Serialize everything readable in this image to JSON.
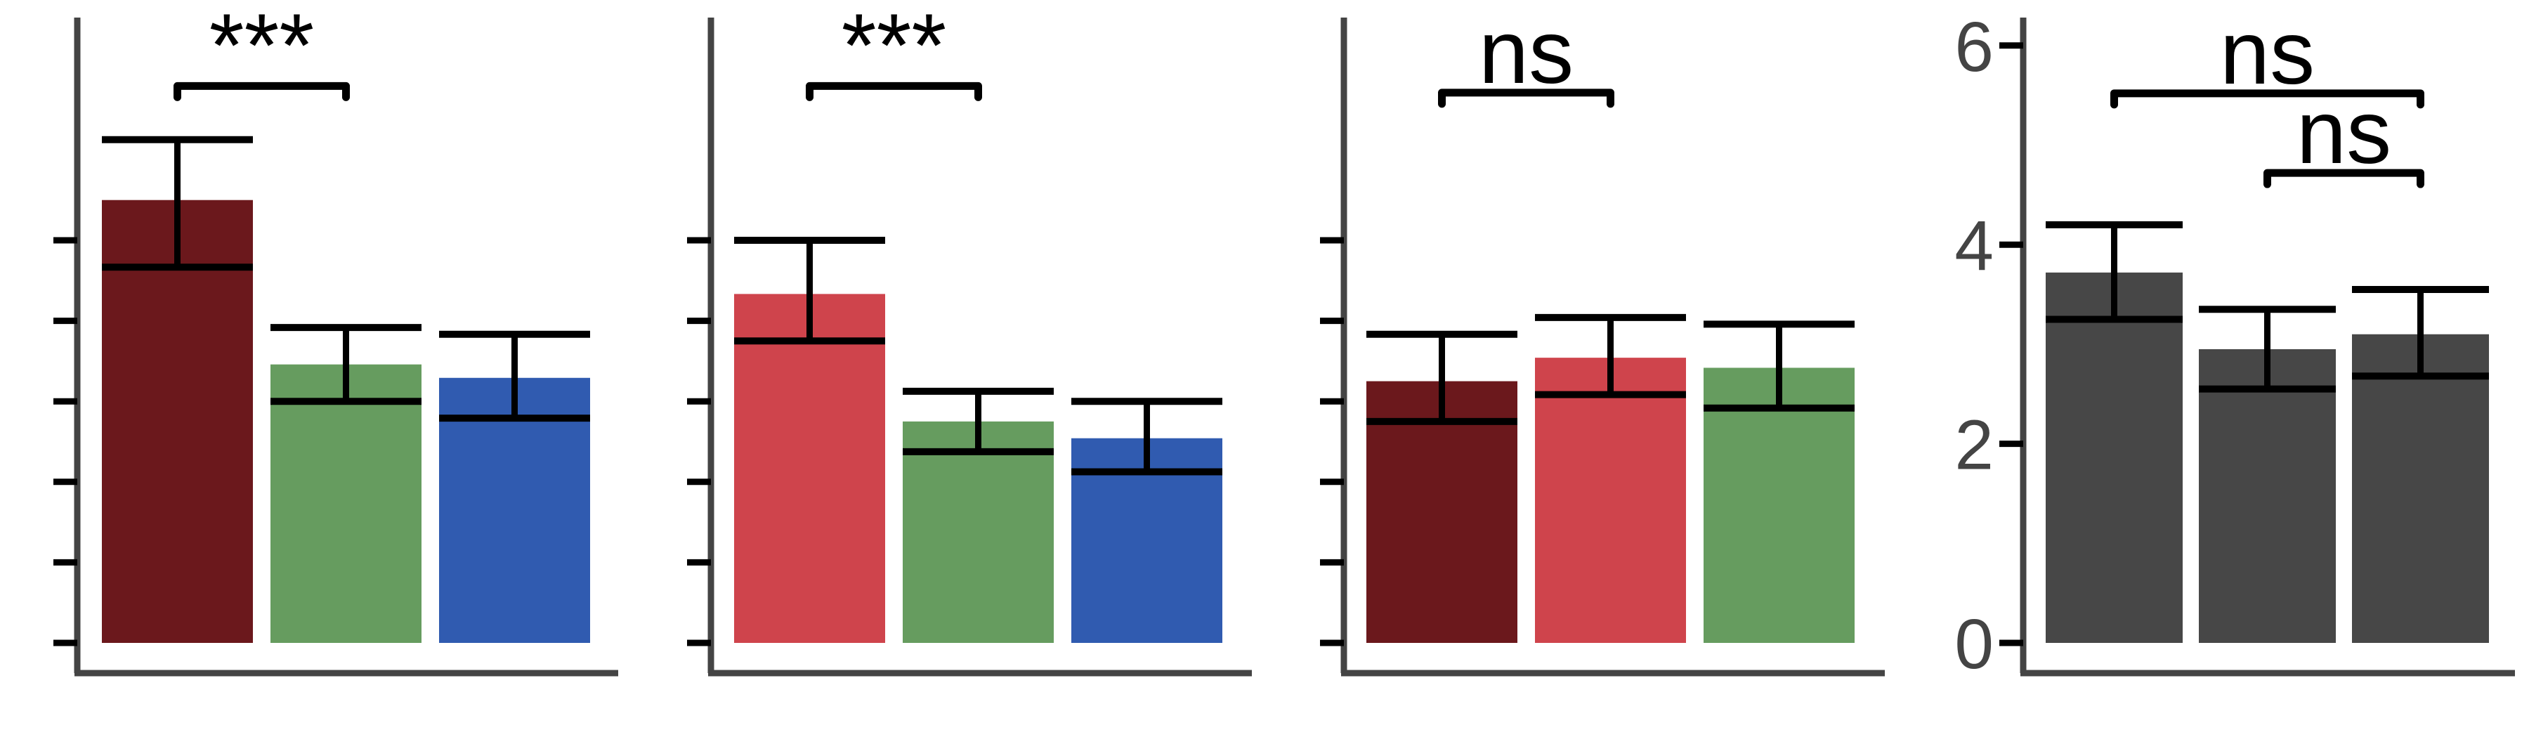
{
  "colors": {
    "axis": "#444444",
    "ink": "#000000",
    "dark_red": "#6b181c",
    "red": "#cf444c",
    "green": "#669c5f",
    "blue": "#305bb0",
    "gray": "#474747"
  },
  "chart_data": [
    {
      "type": "bar",
      "ylim": [
        0,
        6
      ],
      "yticks": [
        0,
        1.2,
        2.4,
        3.6,
        4.8,
        6.0
      ],
      "ytick_labels": [],
      "bars": [
        {
          "value": 6.6,
          "err_low": 5.6,
          "err_high": 7.5,
          "color": "#6b181c"
        },
        {
          "value": 4.15,
          "err_low": 3.6,
          "err_high": 4.7,
          "color": "#669c5f"
        },
        {
          "value": 3.95,
          "err_low": 3.35,
          "err_high": 4.6,
          "color": "#305bb0"
        }
      ],
      "brackets": [
        {
          "from": 0,
          "to": 1,
          "y": 8.3,
          "label": "***"
        }
      ]
    },
    {
      "type": "bar",
      "ylim": [
        0,
        6
      ],
      "yticks": [
        0,
        1.2,
        2.4,
        3.6,
        4.8,
        6.0
      ],
      "ytick_labels": [],
      "bars": [
        {
          "value": 5.2,
          "err_low": 4.5,
          "err_high": 6.0,
          "color": "#cf444c"
        },
        {
          "value": 3.3,
          "err_low": 2.85,
          "err_high": 3.75,
          "color": "#669c5f"
        },
        {
          "value": 3.05,
          "err_low": 2.55,
          "err_high": 3.6,
          "color": "#305bb0"
        }
      ],
      "brackets": [
        {
          "from": 0,
          "to": 1,
          "y": 8.3,
          "label": "***"
        }
      ]
    },
    {
      "type": "bar",
      "ylim": [
        0,
        6
      ],
      "yticks": [
        0,
        1.2,
        2.4,
        3.6,
        4.8,
        6.0
      ],
      "ytick_labels": [],
      "bars": [
        {
          "value": 3.9,
          "err_low": 3.3,
          "err_high": 4.6,
          "color": "#6b181c"
        },
        {
          "value": 4.25,
          "err_low": 3.7,
          "err_high": 4.85,
          "color": "#cf444c"
        },
        {
          "value": 4.1,
          "err_low": 3.5,
          "err_high": 4.75,
          "color": "#669c5f"
        }
      ],
      "brackets": [
        {
          "from": 0,
          "to": 1,
          "y": 8.2,
          "label": "ns"
        }
      ]
    },
    {
      "type": "bar",
      "ylim": [
        0,
        6
      ],
      "yticks": [
        0,
        2,
        4,
        6
      ],
      "ytick_labels": [
        "0",
        "2",
        "4",
        "6"
      ],
      "bars": [
        {
          "value": 3.72,
          "err_low": 3.25,
          "err_high": 4.2,
          "color": "#474747"
        },
        {
          "value": 2.95,
          "err_low": 2.55,
          "err_high": 3.35,
          "color": "#474747"
        },
        {
          "value": 3.1,
          "err_low": 2.68,
          "err_high": 3.55,
          "color": "#474747"
        }
      ],
      "brackets": [
        {
          "from": 0,
          "to": 2,
          "y": 5.52,
          "label": "ns"
        },
        {
          "from": 1,
          "to": 2,
          "y": 4.72,
          "label": "ns"
        }
      ]
    }
  ]
}
